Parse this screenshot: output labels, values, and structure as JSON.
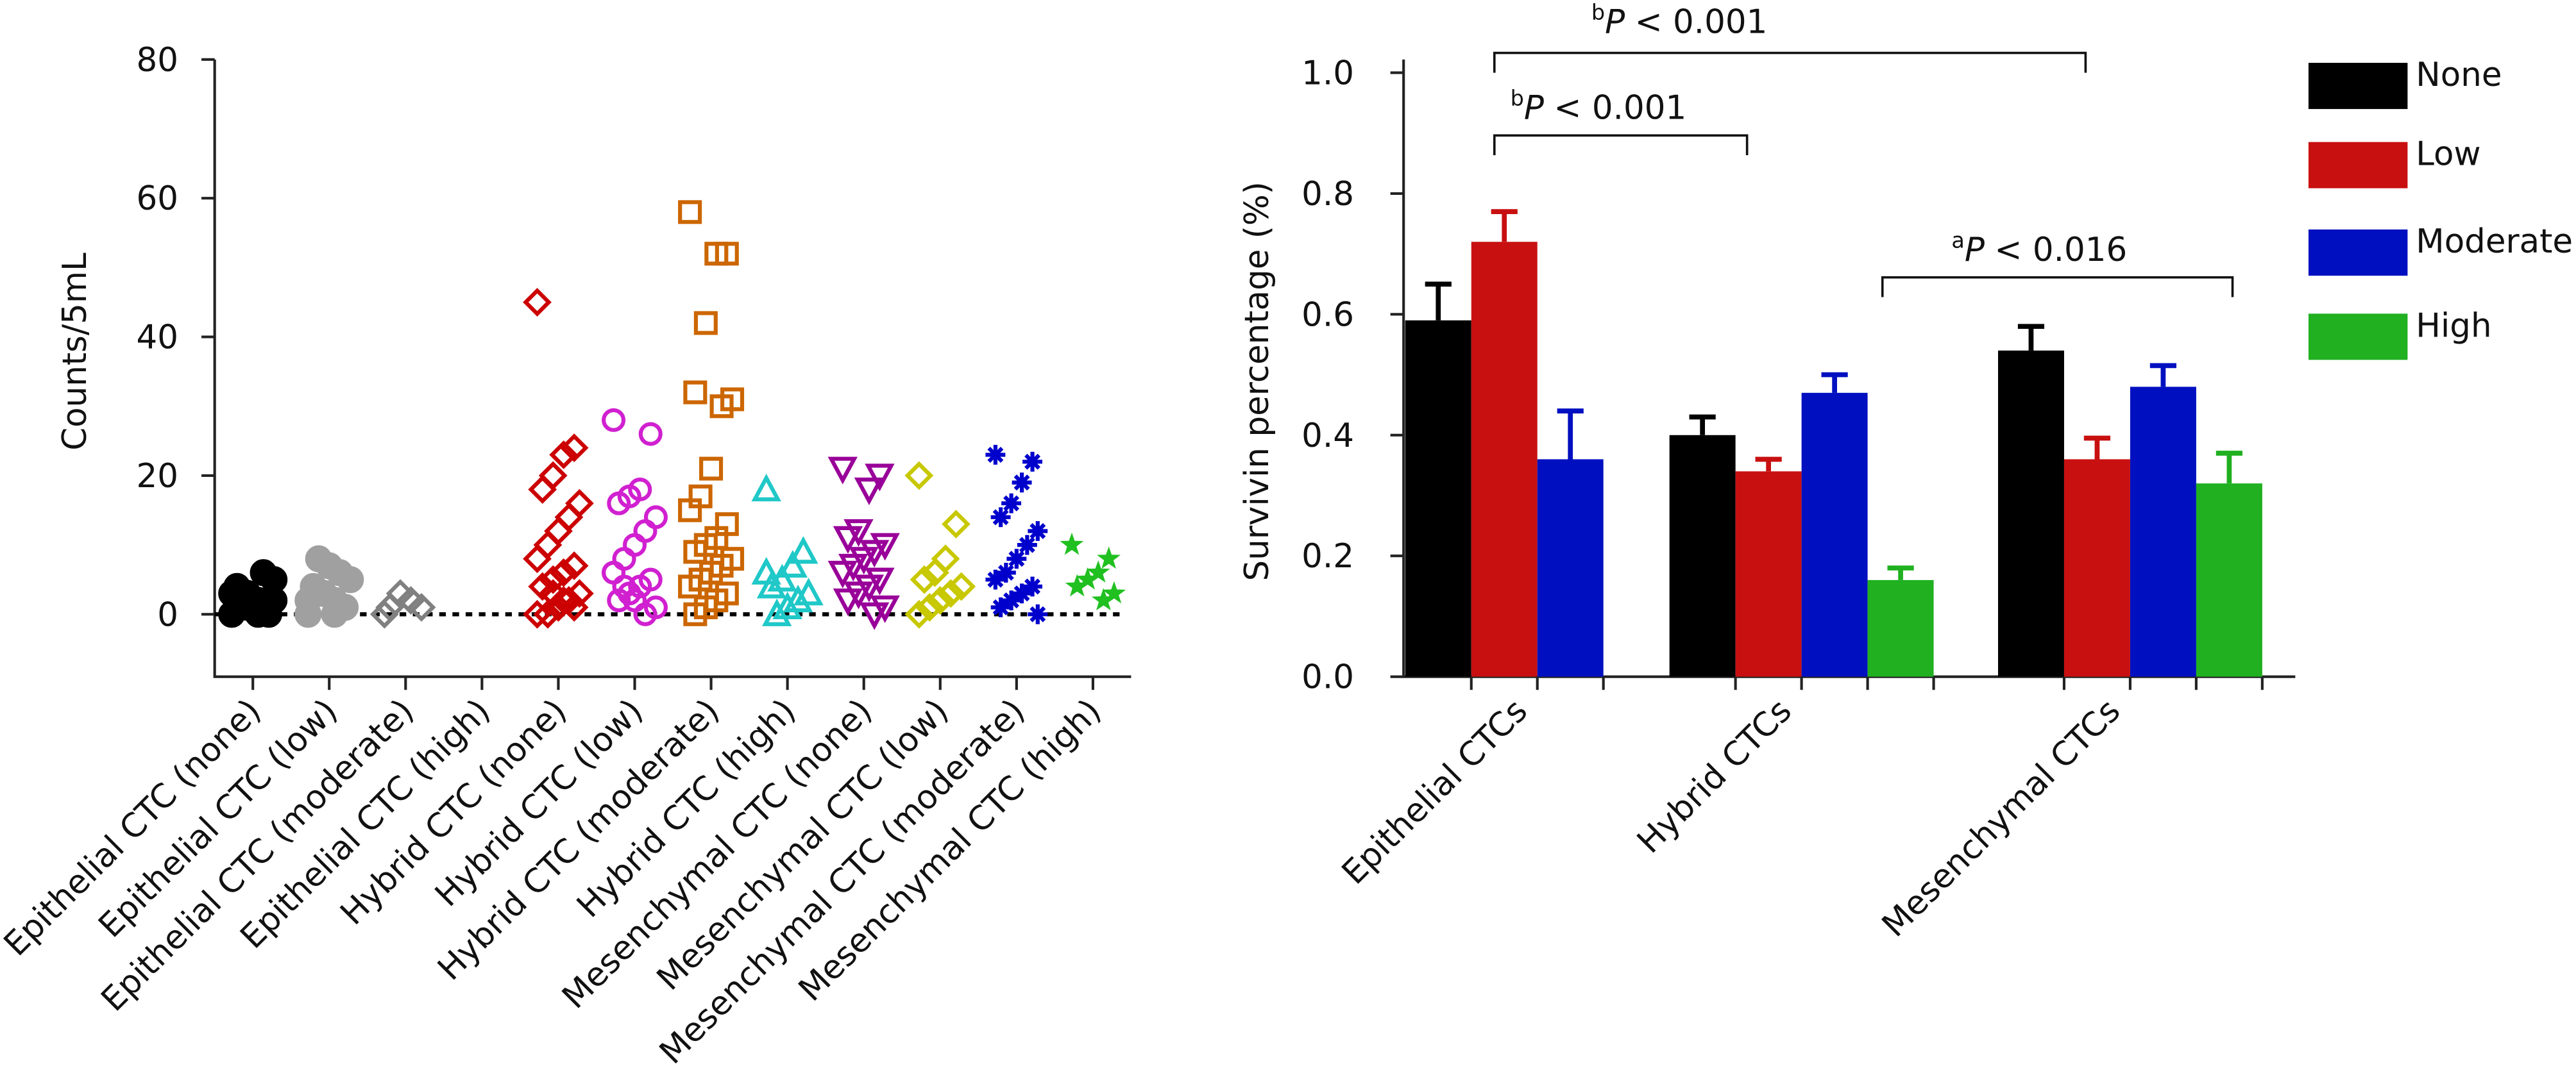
{
  "chart_data": [
    {
      "type": "strip",
      "ylabel": "Counts/5mL",
      "ylim": [
        -9,
        80
      ],
      "yticks": [
        0,
        20,
        40,
        60,
        80
      ],
      "reference_line": 0,
      "categories": [
        "Epithelial CTC (none)",
        "Epithelial CTC (low)",
        "Epithelial CTC (moderate)",
        "Epithelial CTC (high)",
        "Hybrid CTC (none)",
        "Hybrid CTC (low)",
        "Hybrid CTC (moderate)",
        "Hybrid CTC (high)",
        "Mesenchymal CTC (none)",
        "Mesenchymal CTC (low)",
        "Mesenchymal CTC (moderate)",
        "Mesenchymal CTC (high)"
      ],
      "colors": [
        "#000000",
        "#a0a0a0",
        "#808080",
        "#808080",
        "#cc0000",
        "#d020d0",
        "#cc6600",
        "#20c8c8",
        "#990099",
        "#c8c800",
        "#0000cc",
        "#20c020"
      ],
      "markers": [
        "circle-filled",
        "circle-filled",
        "diamond",
        "diamond",
        "diamond",
        "circle",
        "square",
        "triangle",
        "triangle-down",
        "diamond",
        "asterisk",
        "star"
      ],
      "groups": [
        [
          0,
          1,
          2,
          3,
          4,
          5,
          6,
          1,
          2,
          3,
          0,
          0,
          1,
          4,
          2
        ],
        [
          0,
          1,
          2,
          3,
          4,
          5,
          6,
          7,
          8,
          2,
          1,
          0,
          3
        ],
        [
          0,
          1,
          2,
          3,
          1
        ],
        [],
        [
          45,
          24,
          23,
          20,
          18,
          16,
          14,
          12,
          10,
          8,
          7,
          6,
          5,
          4,
          3,
          2,
          1,
          0,
          0,
          1,
          2,
          3
        ],
        [
          28,
          26,
          18,
          17,
          16,
          14,
          12,
          10,
          8,
          6,
          5,
          4,
          3,
          2,
          1,
          0,
          2,
          4,
          6
        ],
        [
          58,
          52,
          52,
          42,
          32,
          31,
          30,
          21,
          17,
          15,
          13,
          11,
          10,
          9,
          8,
          7,
          6,
          5,
          4,
          3,
          2,
          1,
          0
        ],
        [
          18,
          9,
          7,
          5,
          4,
          3,
          2,
          1,
          0,
          6
        ],
        [
          21,
          20,
          18,
          12,
          11,
          10,
          9,
          8,
          7,
          6,
          5,
          4,
          3,
          2,
          1,
          0
        ],
        [
          20,
          13,
          8,
          6,
          5,
          4,
          3,
          2,
          1,
          0
        ],
        [
          23,
          22,
          19,
          16,
          14,
          12,
          10,
          8,
          6,
          5,
          4,
          3,
          2,
          1,
          0
        ],
        [
          10,
          8,
          6,
          5,
          4,
          3,
          2
        ]
      ]
    },
    {
      "type": "bar",
      "ylabel": "Survivin percentage (%)",
      "ylim": [
        0,
        1.0
      ],
      "yticks": [
        {
          "value": 0,
          "label": "0.0"
        },
        0.2,
        0.4,
        0.6,
        0.8,
        {
          "value": 1.0,
          "label": "1.0"
        }
      ],
      "categories": [
        "Epithelial CTCs",
        "Hybrid CTCs",
        "Mesenchymal CTCs"
      ],
      "series": [
        {
          "name": "None",
          "color": "#000000",
          "values": [
            0.59,
            0.4,
            0.54
          ],
          "errors": [
            0.06,
            0.03,
            0.04
          ]
        },
        {
          "name": "Low",
          "color": "#c81010",
          "values": [
            0.72,
            0.34,
            0.36
          ],
          "errors": [
            0.05,
            0.02,
            0.035
          ]
        },
        {
          "name": "Moderate",
          "color": "#0010c0",
          "values": [
            0.36,
            0.47,
            0.48
          ],
          "errors": [
            0.08,
            0.03,
            0.035
          ]
        },
        {
          "name": "High",
          "color": "#20b020",
          "values": [
            null,
            0.16,
            0.32
          ],
          "errors": [
            null,
            0.02,
            0.05
          ]
        }
      ],
      "legend": "right",
      "annotations": [
        {
          "sup": "b",
          "symbol": "P",
          "text": "< 0.001"
        },
        {
          "sup": "b",
          "symbol": "P",
          "text": "< 0.001"
        },
        {
          "sup": "a",
          "symbol": "P",
          "text": "< 0.016"
        }
      ]
    }
  ]
}
